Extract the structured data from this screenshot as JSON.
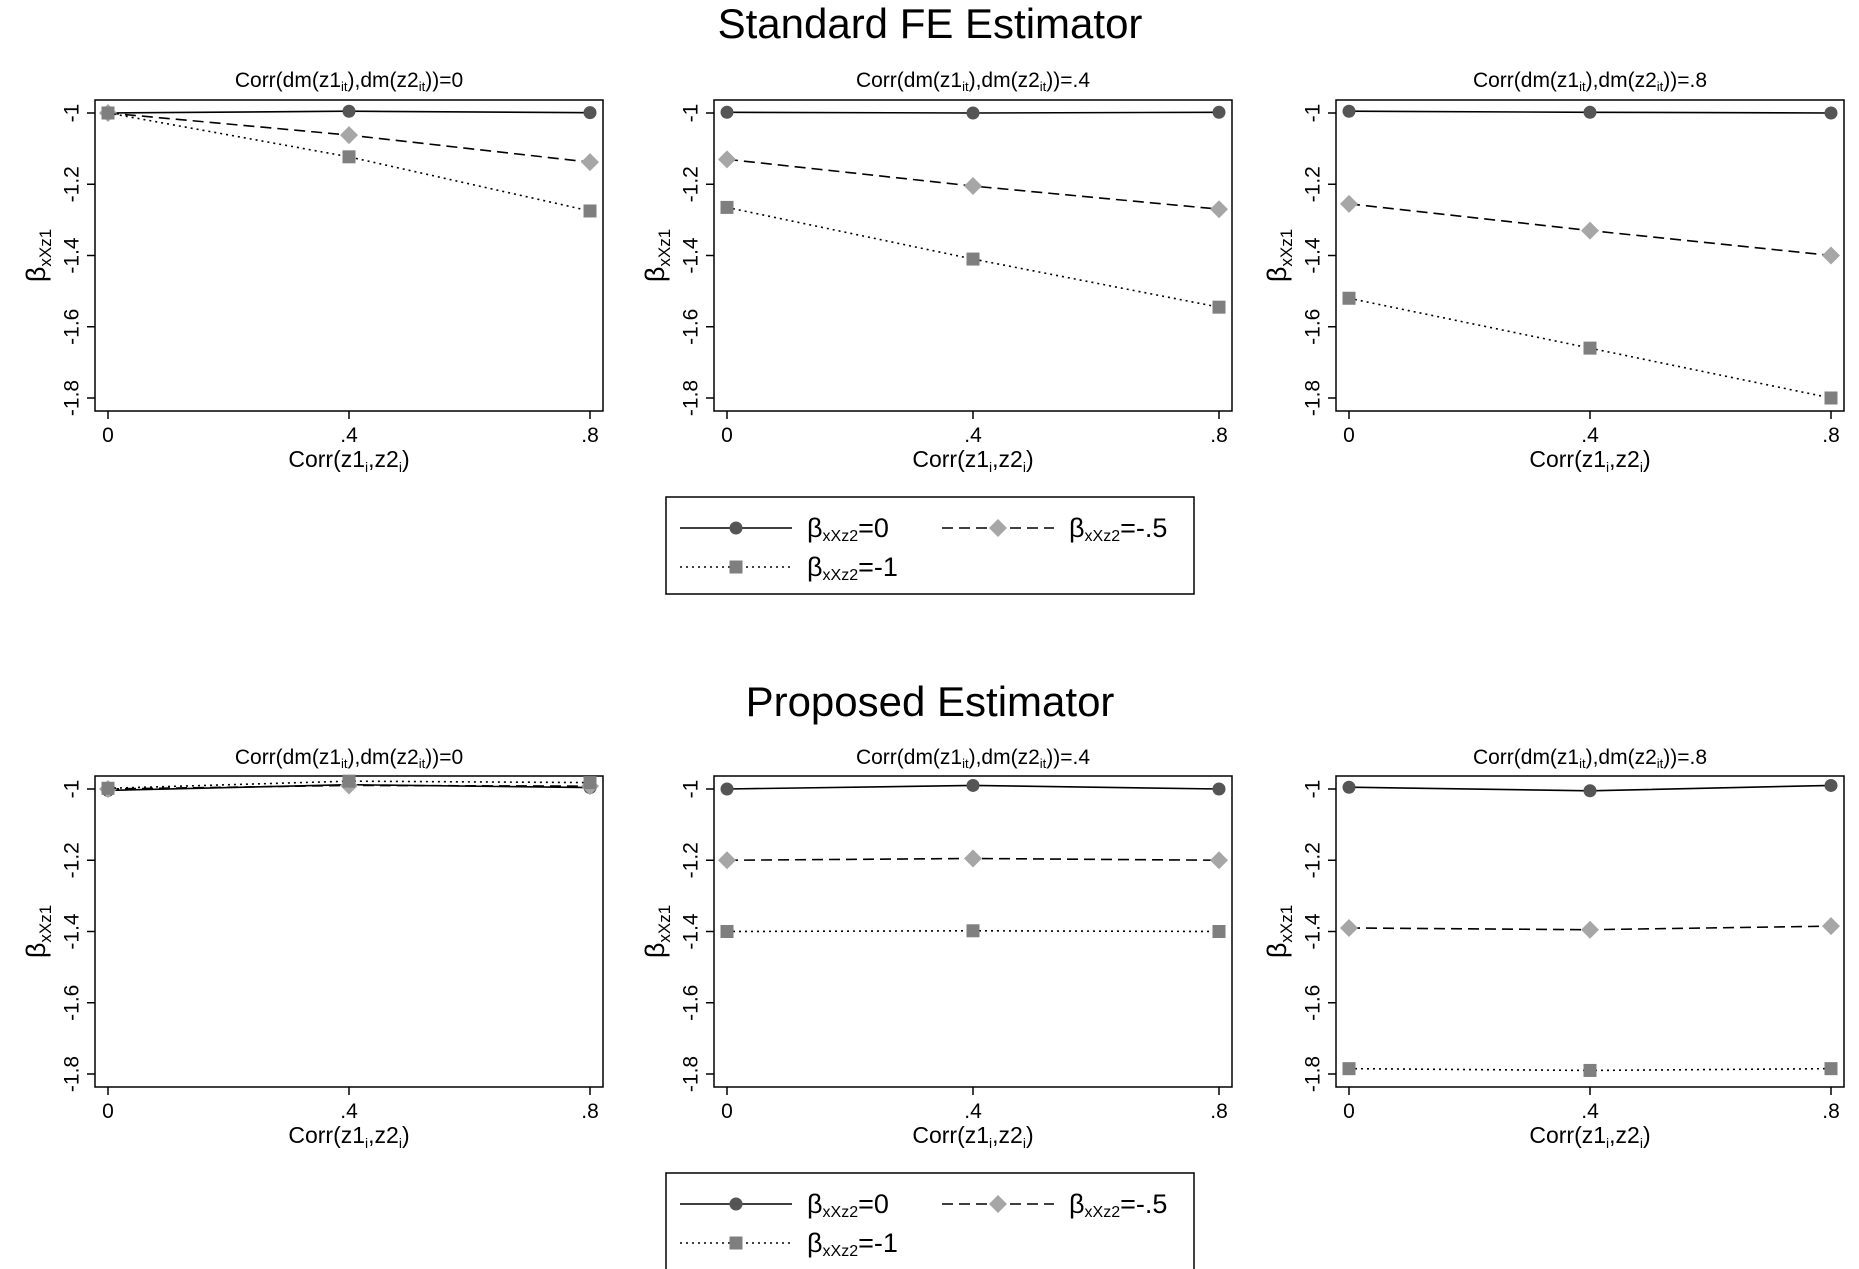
{
  "figures": [
    {
      "title": "Standard FE Estimator",
      "panels": [
        {
          "title_main": "Corr(dm(z1",
          "title_sub1": "it",
          "title_mid": "),dm(z2",
          "title_sub2": "it",
          "title_end": "))=0"
        },
        {
          "title_main": "Corr(dm(z1",
          "title_sub1": "it",
          "title_mid": "),dm(z2",
          "title_sub2": "it",
          "title_end": "))=.4"
        },
        {
          "title_main": "Corr(dm(z1",
          "title_sub1": "it",
          "title_mid": "),dm(z2",
          "title_sub2": "it",
          "title_end": "))=.8"
        }
      ]
    },
    {
      "title": "Proposed Estimator",
      "panels": [
        {
          "title_main": "Corr(dm(z1",
          "title_sub1": "it",
          "title_mid": "),dm(z2",
          "title_sub2": "it",
          "title_end": "))=0"
        },
        {
          "title_main": "Corr(dm(z1",
          "title_sub1": "it",
          "title_mid": "),dm(z2",
          "title_sub2": "it",
          "title_end": "))=.4"
        },
        {
          "title_main": "Corr(dm(z1",
          "title_sub1": "it",
          "title_mid": "),dm(z2",
          "title_sub2": "it",
          "title_end": "))=.8"
        }
      ]
    }
  ],
  "axes": {
    "xlabel": {
      "a": "Corr(z1",
      "sub1": "i",
      "b": ",z2",
      "sub2": "i",
      "c": ")"
    },
    "ylabel": {
      "main": "β",
      "sub": "xXz1"
    },
    "x_ticks": [
      {
        "value": 0,
        "label": "0"
      },
      {
        "value": 0.4,
        "label": ".4"
      },
      {
        "value": 0.8,
        "label": ".8"
      }
    ],
    "y_ticks": [
      {
        "value": -1,
        "label": "-1"
      },
      {
        "value": -1.2,
        "label": "-1.2"
      },
      {
        "value": -1.4,
        "label": "-1.4"
      },
      {
        "value": -1.6,
        "label": "-1.6"
      },
      {
        "value": -1.8,
        "label": "-1.8"
      }
    ],
    "xlim": [
      0,
      0.8
    ],
    "ylim": [
      -1.8,
      -1
    ]
  },
  "legend": [
    {
      "main": "β",
      "sub": "xXz2",
      "rest": "=0"
    },
    {
      "main": "β",
      "sub": "xXz2",
      "rest": "=-.5"
    },
    {
      "main": "β",
      "sub": "xXz2",
      "rest": "=-1"
    }
  ],
  "colors": {
    "series0": "#555555",
    "series1": "#a6a6a6",
    "series2": "#7f7f7f"
  },
  "chart_data": [
    {
      "type": "line",
      "figure": "Standard FE Estimator",
      "panel": "Corr(dm(z1it),dm(z2it))=0",
      "x": [
        0,
        0.4,
        0.8
      ],
      "xlim": [
        0,
        0.8
      ],
      "ylim": [
        -1.8,
        -1
      ],
      "grid": false,
      "series": [
        {
          "name": "βxXz2=0",
          "marker": "circle",
          "style": "solid",
          "values": [
            -1.0,
            -0.995,
            -0.999
          ]
        },
        {
          "name": "βxXz2=-.5",
          "marker": "diamond",
          "style": "dashed",
          "values": [
            -1.0,
            -1.062,
            -1.138
          ]
        },
        {
          "name": "βxXz2=-1",
          "marker": "square",
          "style": "dotted",
          "values": [
            -1.0,
            -1.123,
            -1.275
          ]
        }
      ]
    },
    {
      "type": "line",
      "figure": "Standard FE Estimator",
      "panel": "Corr(dm(z1it),dm(z2it))=.4",
      "x": [
        0,
        0.4,
        0.8
      ],
      "xlim": [
        0,
        0.8
      ],
      "ylim": [
        -1.8,
        -1
      ],
      "grid": false,
      "series": [
        {
          "name": "βxXz2=0",
          "marker": "circle",
          "style": "solid",
          "values": [
            -0.998,
            -1.0,
            -0.998
          ]
        },
        {
          "name": "βxXz2=-.5",
          "marker": "diamond",
          "style": "dashed",
          "values": [
            -1.13,
            -1.205,
            -1.27
          ]
        },
        {
          "name": "βxXz2=-1",
          "marker": "square",
          "style": "dotted",
          "values": [
            -1.265,
            -1.41,
            -1.545
          ]
        }
      ]
    },
    {
      "type": "line",
      "figure": "Standard FE Estimator",
      "panel": "Corr(dm(z1it),dm(z2it))=.8",
      "x": [
        0,
        0.4,
        0.8
      ],
      "xlim": [
        0,
        0.8
      ],
      "ylim": [
        -1.8,
        -1
      ],
      "grid": false,
      "series": [
        {
          "name": "βxXz2=0",
          "marker": "circle",
          "style": "solid",
          "values": [
            -0.995,
            -0.998,
            -1.0
          ]
        },
        {
          "name": "βxXz2=-.5",
          "marker": "diamond",
          "style": "dashed",
          "values": [
            -1.255,
            -1.33,
            -1.4
          ]
        },
        {
          "name": "βxXz2=-1",
          "marker": "square",
          "style": "dotted",
          "values": [
            -1.52,
            -1.66,
            -1.8
          ]
        }
      ]
    },
    {
      "type": "line",
      "figure": "Proposed Estimator",
      "panel": "Corr(dm(z1it),dm(z2it))=0",
      "x": [
        0,
        0.4,
        0.8
      ],
      "xlim": [
        0,
        0.8
      ],
      "ylim": [
        -1.8,
        -1
      ],
      "grid": false,
      "series": [
        {
          "name": "βxXz2=0",
          "marker": "circle",
          "style": "solid",
          "values": [
            -1.004,
            -0.988,
            -0.996
          ]
        },
        {
          "name": "βxXz2=-.5",
          "marker": "diamond",
          "style": "dashed",
          "values": [
            -1.0,
            -0.99,
            -0.992
          ]
        },
        {
          "name": "βxXz2=-1",
          "marker": "square",
          "style": "dotted",
          "values": [
            -0.998,
            -0.978,
            -0.982
          ]
        }
      ]
    },
    {
      "type": "line",
      "figure": "Proposed Estimator",
      "panel": "Corr(dm(z1it),dm(z2it))=.4",
      "x": [
        0,
        0.4,
        0.8
      ],
      "xlim": [
        0,
        0.8
      ],
      "ylim": [
        -1.8,
        -1
      ],
      "grid": false,
      "series": [
        {
          "name": "βxXz2=0",
          "marker": "circle",
          "style": "solid",
          "values": [
            -1.0,
            -0.99,
            -1.0
          ]
        },
        {
          "name": "βxXz2=-.5",
          "marker": "diamond",
          "style": "dashed",
          "values": [
            -1.2,
            -1.195,
            -1.2
          ]
        },
        {
          "name": "βxXz2=-1",
          "marker": "square",
          "style": "dotted",
          "values": [
            -1.4,
            -1.398,
            -1.4
          ]
        }
      ]
    },
    {
      "type": "line",
      "figure": "Proposed Estimator",
      "panel": "Corr(dm(z1it),dm(z2it))=.8",
      "x": [
        0,
        0.4,
        0.8
      ],
      "xlim": [
        0,
        0.8
      ],
      "ylim": [
        -1.8,
        -1
      ],
      "grid": false,
      "series": [
        {
          "name": "βxXz2=0",
          "marker": "circle",
          "style": "solid",
          "values": [
            -0.995,
            -1.005,
            -0.99
          ]
        },
        {
          "name": "βxXz2=-.5",
          "marker": "diamond",
          "style": "dashed",
          "values": [
            -1.39,
            -1.395,
            -1.385
          ]
        },
        {
          "name": "βxXz2=-1",
          "marker": "square",
          "style": "dotted",
          "values": [
            -1.785,
            -1.79,
            -1.785
          ]
        }
      ]
    }
  ]
}
